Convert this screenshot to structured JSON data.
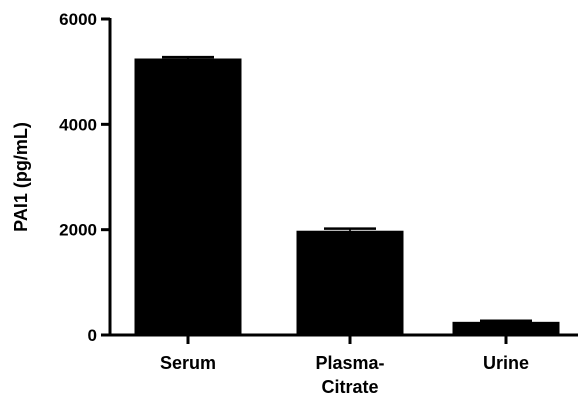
{
  "chart_data": {
    "type": "bar",
    "title": "",
    "xlabel": "",
    "ylabel": "PAI1 (pg/mL)",
    "categories": [
      [
        "Serum"
      ],
      [
        "Plasma-",
        "Citrate"
      ],
      [
        "Urine"
      ]
    ],
    "values": [
      5250,
      1980,
      250
    ],
    "error_upper": [
      5275,
      2020,
      270
    ],
    "ylim": [
      0,
      6000
    ],
    "yticks": [
      0,
      2000,
      4000,
      6000
    ],
    "ytick_labels": [
      "0",
      "2000",
      "4000",
      "6000"
    ],
    "bar_color": "#000000",
    "grid": false,
    "legend": "none"
  }
}
